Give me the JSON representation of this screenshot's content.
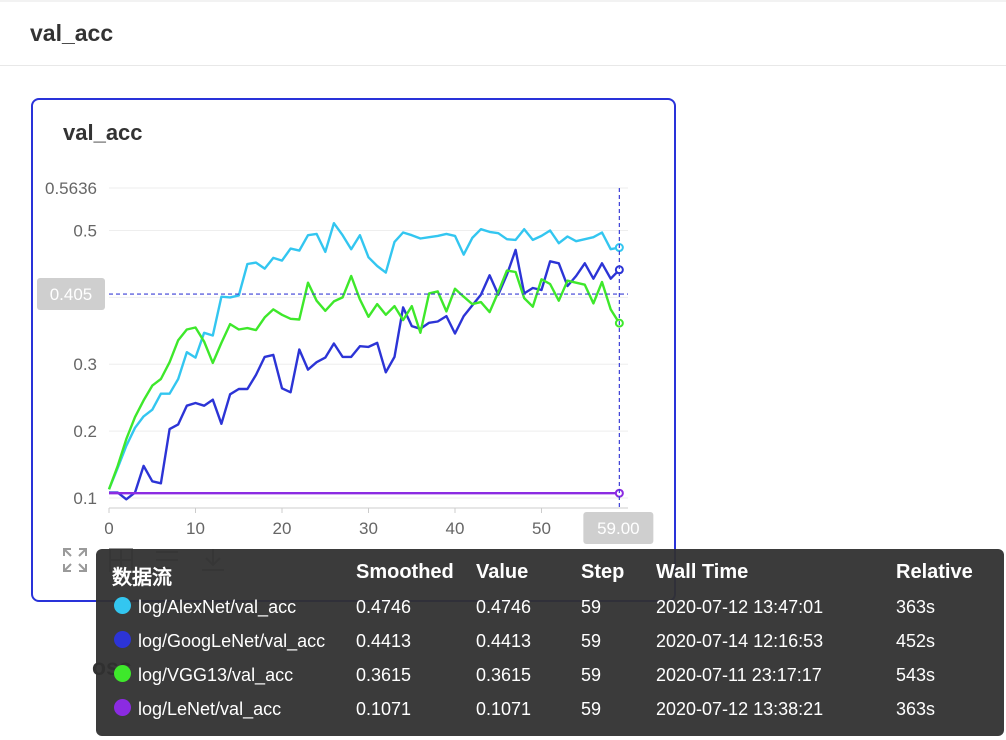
{
  "section": {
    "title": "val_acc",
    "next_title": "oss"
  },
  "card": {
    "title": "val_acc"
  },
  "chart_data": {
    "type": "line",
    "title": "val_acc",
    "xlabel": "",
    "ylabel": "",
    "xlim": [
      0,
      60
    ],
    "ylim": [
      0.085,
      0.5636
    ],
    "x_ticks": [
      "0",
      "10",
      "20",
      "30",
      "40",
      "50"
    ],
    "y_ticks": [
      "0.1",
      "0.2",
      "0.3",
      "0.5"
    ],
    "y_max_label": "0.5636",
    "hover_x_label": "59.00",
    "hover_y_label": "0.405",
    "hover_x": 59,
    "hover_y": 0.405,
    "grid": true,
    "series": [
      {
        "name": "log/AlexNet/val_acc",
        "color": "#33c6f0",
        "x": [
          0,
          1,
          2,
          3,
          4,
          5,
          6,
          7,
          8,
          9,
          10,
          11,
          12,
          13,
          14,
          15,
          16,
          17,
          18,
          19,
          20,
          21,
          22,
          23,
          24,
          25,
          26,
          27,
          28,
          29,
          30,
          31,
          32,
          33,
          34,
          35,
          36,
          37,
          38,
          39,
          40,
          41,
          42,
          43,
          44,
          45,
          46,
          47,
          48,
          49,
          50,
          51,
          52,
          53,
          54,
          55,
          56,
          57,
          58,
          59
        ],
        "values": [
          0.113,
          0.145,
          0.178,
          0.205,
          0.222,
          0.232,
          0.256,
          0.256,
          0.278,
          0.318,
          0.31,
          0.347,
          0.343,
          0.401,
          0.4,
          0.403,
          0.45,
          0.452,
          0.443,
          0.459,
          0.455,
          0.473,
          0.47,
          0.493,
          0.495,
          0.468,
          0.511,
          0.493,
          0.472,
          0.493,
          0.46,
          0.447,
          0.437,
          0.483,
          0.497,
          0.493,
          0.488,
          0.49,
          0.492,
          0.495,
          0.492,
          0.464,
          0.489,
          0.502,
          0.498,
          0.496,
          0.487,
          0.486,
          0.502,
          0.486,
          0.492,
          0.5,
          0.481,
          0.491,
          0.484,
          0.487,
          0.49,
          0.497,
          0.472,
          0.4746
        ]
      },
      {
        "name": "log/GoogLeNet/val_acc",
        "color": "#2c34d6",
        "x": [
          0,
          1,
          2,
          3,
          4,
          5,
          6,
          7,
          8,
          9,
          10,
          11,
          12,
          13,
          14,
          15,
          16,
          17,
          18,
          19,
          20,
          21,
          22,
          23,
          24,
          25,
          26,
          27,
          28,
          29,
          30,
          31,
          32,
          33,
          34,
          35,
          36,
          37,
          38,
          39,
          40,
          41,
          42,
          43,
          44,
          45,
          46,
          47,
          48,
          49,
          50,
          51,
          52,
          53,
          54,
          55,
          56,
          57,
          58,
          59
        ],
        "values": [
          0.108,
          0.108,
          0.098,
          0.108,
          0.148,
          0.125,
          0.122,
          0.203,
          0.21,
          0.238,
          0.242,
          0.238,
          0.247,
          0.211,
          0.255,
          0.263,
          0.263,
          0.284,
          0.311,
          0.314,
          0.264,
          0.258,
          0.322,
          0.292,
          0.303,
          0.31,
          0.331,
          0.311,
          0.311,
          0.327,
          0.326,
          0.332,
          0.288,
          0.311,
          0.385,
          0.357,
          0.353,
          0.362,
          0.364,
          0.372,
          0.346,
          0.372,
          0.388,
          0.404,
          0.433,
          0.404,
          0.434,
          0.471,
          0.406,
          0.414,
          0.411,
          0.454,
          0.451,
          0.417,
          0.432,
          0.451,
          0.428,
          0.451,
          0.428,
          0.4413
        ]
      },
      {
        "name": "log/VGG13/val_acc",
        "color": "#3ee82b",
        "x": [
          0,
          1,
          2,
          3,
          4,
          5,
          6,
          7,
          8,
          9,
          10,
          11,
          12,
          13,
          14,
          15,
          16,
          17,
          18,
          19,
          20,
          21,
          22,
          23,
          24,
          25,
          26,
          27,
          28,
          29,
          30,
          31,
          32,
          33,
          34,
          35,
          36,
          37,
          38,
          39,
          40,
          41,
          42,
          43,
          44,
          45,
          46,
          47,
          48,
          49,
          50,
          51,
          52,
          53,
          54,
          55,
          56,
          57,
          58,
          59
        ],
        "values": [
          0.113,
          0.148,
          0.188,
          0.221,
          0.246,
          0.268,
          0.278,
          0.303,
          0.336,
          0.352,
          0.355,
          0.334,
          0.302,
          0.332,
          0.36,
          0.352,
          0.354,
          0.351,
          0.37,
          0.382,
          0.374,
          0.368,
          0.367,
          0.422,
          0.395,
          0.38,
          0.394,
          0.4,
          0.432,
          0.397,
          0.371,
          0.39,
          0.374,
          0.387,
          0.366,
          0.387,
          0.347,
          0.406,
          0.409,
          0.379,
          0.413,
          0.401,
          0.39,
          0.393,
          0.378,
          0.408,
          0.44,
          0.438,
          0.399,
          0.386,
          0.427,
          0.42,
          0.395,
          0.425,
          0.422,
          0.419,
          0.391,
          0.423,
          0.382,
          0.3615
        ]
      },
      {
        "name": "log/LeNet/val_acc",
        "color": "#8b2be2",
        "x": [
          0,
          59
        ],
        "values": [
          0.1071,
          0.1071
        ]
      }
    ]
  },
  "tooltip": {
    "headers": {
      "name": "数据流",
      "smoothed": "Smoothed",
      "value": "Value",
      "step": "Step",
      "wall_time": "Wall Time",
      "relative": "Relative"
    },
    "rows": [
      {
        "name": "log/AlexNet/val_acc",
        "color": "#33c6f0",
        "smoothed": "0.4746",
        "value": "0.4746",
        "step": "59",
        "wall_time": "2020-07-12 13:47:01",
        "relative": "363s"
      },
      {
        "name": "log/GoogLeNet/val_acc",
        "color": "#2c34d6",
        "smoothed": "0.4413",
        "value": "0.4413",
        "step": "59",
        "wall_time": "2020-07-14 12:16:53",
        "relative": "452s"
      },
      {
        "name": "log/VGG13/val_acc",
        "color": "#3ee82b",
        "smoothed": "0.3615",
        "value": "0.3615",
        "step": "59",
        "wall_time": "2020-07-11 23:17:17",
        "relative": "543s"
      },
      {
        "name": "log/LeNet/val_acc",
        "color": "#8b2be2",
        "smoothed": "0.1071",
        "value": "0.1071",
        "step": "59",
        "wall_time": "2020-07-12 13:38:21",
        "relative": "363s"
      }
    ]
  },
  "toolbar": {
    "icons": [
      "fullscreen-icon",
      "table-icon",
      "filter-icon",
      "download-icon"
    ]
  }
}
